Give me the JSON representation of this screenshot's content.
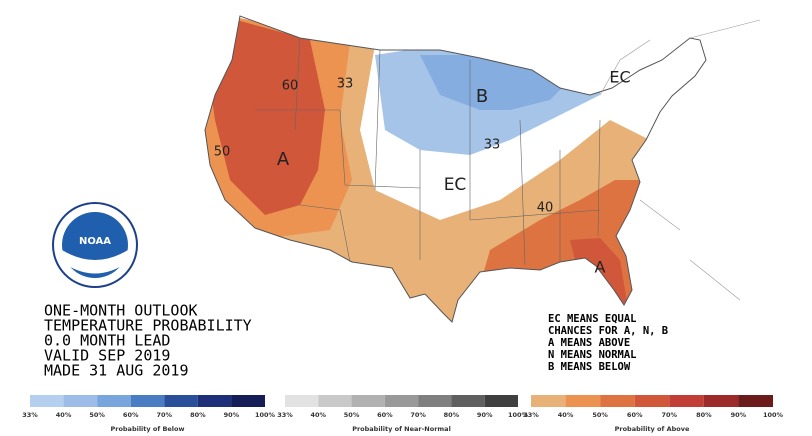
{
  "map_labels": [
    "60",
    "33",
    "B",
    "50",
    "A",
    "33",
    "EC",
    "40",
    "A",
    "EC"
  ],
  "logo": "NOAA",
  "title_lines": [
    "ONE-MONTH OUTLOOK",
    "TEMPERATURE PROBABILITY",
    "0.0 MONTH LEAD",
    "VALID SEP 2019",
    "MADE 31 AUG 2019"
  ],
  "key_lines": [
    "EC MEANS EQUAL",
    "CHANCES FOR A, N, B",
    "A MEANS ABOVE",
    "N MEANS NORMAL",
    "B MEANS BELOW"
  ],
  "legends": [
    {
      "title": "Probability of Below",
      "ticks": [
        "33%",
        "40%",
        "50%",
        "60%",
        "70%",
        "80%",
        "90%",
        "100%"
      ],
      "colors": [
        "#b5cfee",
        "#9dbde8",
        "#78a5dc",
        "#4a7cc3",
        "#2a4f9a",
        "#1d2f78",
        "#141d55"
      ]
    },
    {
      "title": "Probability of Near-Normal",
      "ticks": [
        "33%",
        "40%",
        "50%",
        "60%",
        "70%",
        "80%",
        "90%",
        "100%"
      ],
      "colors": [
        "#e2e2e2",
        "#c9c9c9",
        "#b1b1b1",
        "#999999",
        "#7f7f7f",
        "#5f5f5f",
        "#3f3f3f"
      ]
    },
    {
      "title": "Probability of Above",
      "ticks": [
        "33%",
        "40%",
        "50%",
        "60%",
        "70%",
        "80%",
        "90%",
        "100%"
      ],
      "colors": [
        "#e8b177",
        "#ec9352",
        "#de7342",
        "#d1573a",
        "#c23d35",
        "#9b2a28",
        "#6b1c1a"
      ]
    }
  ]
}
